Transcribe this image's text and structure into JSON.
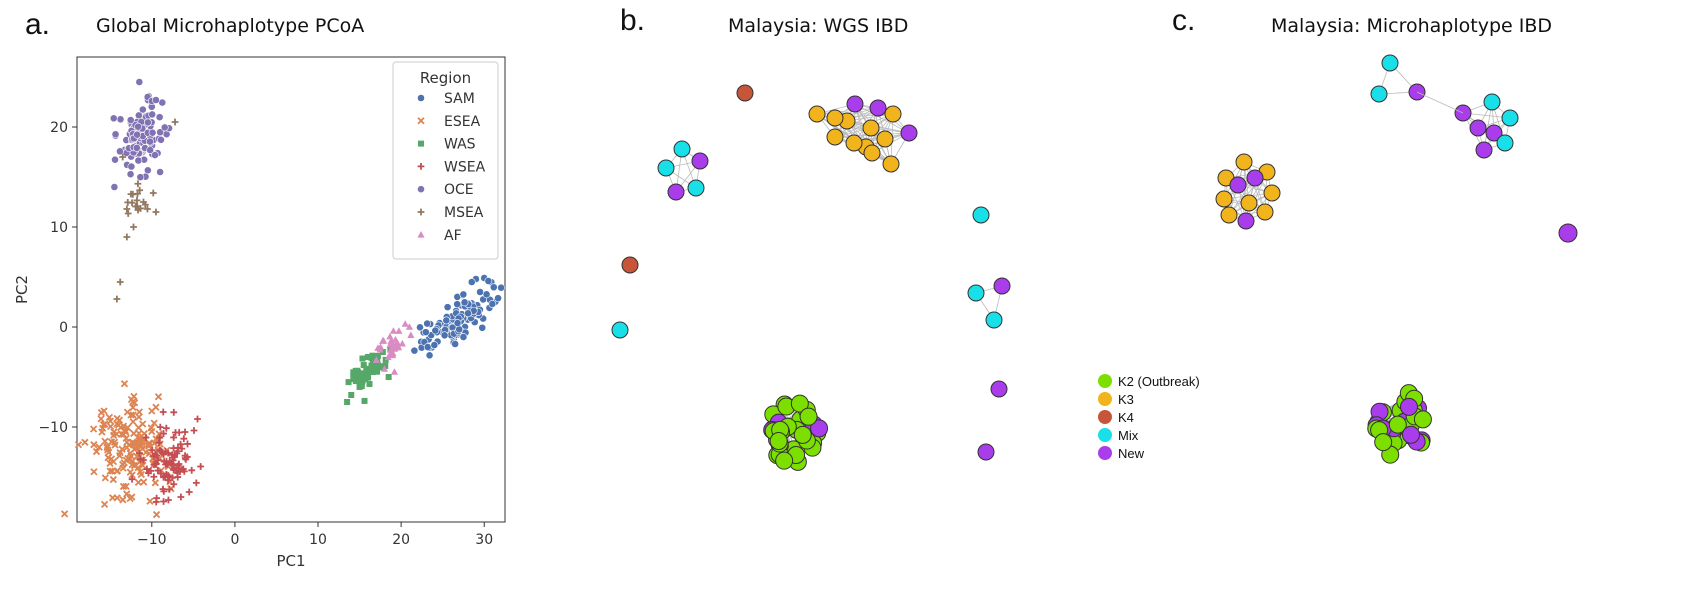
{
  "panels": {
    "a": {
      "label": "a.",
      "title": "Global Microhaplotype PCoA"
    },
    "b": {
      "label": "b.",
      "title": "Malaysia: WGS IBD"
    },
    "c": {
      "label": "c.",
      "title": "Malaysia: Microhaplotype IBD"
    }
  },
  "network_legend": [
    {
      "label": "K2 (Outbreak)",
      "color": "#7CDF00"
    },
    {
      "label": "K3",
      "color": "#F2B41C"
    },
    {
      "label": "K4",
      "color": "#C7553A"
    },
    {
      "label": "Mix",
      "color": "#19E0E8"
    },
    {
      "label": "New",
      "color": "#A93DEB"
    }
  ],
  "chart_data": [
    {
      "type": "scatter",
      "title": "Global Microhaplotype PCoA",
      "xlabel": "PC1",
      "ylabel": "PC2",
      "xlim": [
        -19,
        32.5
      ],
      "ylim": [
        -19.5,
        27
      ],
      "xticks": [
        -10,
        0,
        10,
        20,
        30
      ],
      "yticks": [
        -10,
        0,
        10,
        20
      ],
      "tick_labels": {
        "x": [
          "−10",
          "0",
          "10",
          "20",
          "30"
        ],
        "y": [
          "−10",
          "0",
          "10",
          "20"
        ]
      },
      "grid": false,
      "legend": {
        "title": "Region",
        "position": "top-right"
      },
      "series": [
        {
          "name": "SAM",
          "color": "#4C72B0",
          "marker": "circle",
          "cluster": {
            "center": [
              26.5,
              0.5
            ],
            "spread": [
              2.5,
              1.6
            ],
            "count": 110,
            "rotate": 0.55
          },
          "points": [
            [
              29.0,
              4.8
            ],
            [
              30.0,
              4.9
            ],
            [
              30.5,
              4.6
            ],
            [
              28.5,
              4.5
            ],
            [
              29.5,
              3.5
            ],
            [
              22.8,
              -1.5
            ],
            [
              23.2,
              -2.0
            ],
            [
              24.0,
              -1.8
            ],
            [
              26.5,
              -1.7
            ],
            [
              27.5,
              -1.0
            ]
          ]
        },
        {
          "name": "ESEA",
          "color": "#DD8452",
          "marker": "x",
          "cluster": {
            "center": [
              -13.0,
              -12.5
            ],
            "spread": [
              2.3,
              2.3
            ],
            "count": 150,
            "rotate": 0
          },
          "points": [
            [
              -17.0,
              -10.2
            ],
            [
              -16.0,
              -10.5
            ],
            [
              -11.5,
              -8.5
            ],
            [
              -10.0,
              -8.4
            ],
            [
              -12.5,
              -8.8
            ],
            [
              -14.0,
              -9.8
            ]
          ]
        },
        {
          "name": "WAS",
          "color": "#55A868",
          "marker": "square",
          "cluster": {
            "center": [
              16.0,
              -4.2
            ],
            "spread": [
              1.5,
              1.2
            ],
            "count": 50,
            "rotate": 0.65
          },
          "points": [
            [
              13.5,
              -7.5
            ],
            [
              14.0,
              -6.8
            ],
            [
              16.0,
              -3.0
            ],
            [
              17.8,
              -2.5
            ],
            [
              18.5,
              -5.0
            ],
            [
              15.0,
              -6.0
            ]
          ]
        },
        {
          "name": "WSEA",
          "color": "#C44E52",
          "marker": "plus",
          "cluster": {
            "center": [
              -8.0,
              -13.5
            ],
            "spread": [
              1.6,
              1.7
            ],
            "count": 90,
            "rotate": 0
          },
          "points": [
            [
              -4.5,
              -9.2
            ],
            [
              -6.0,
              -10.5
            ],
            [
              -5.5,
              -16.5
            ],
            [
              -6.5,
              -17.0
            ],
            [
              -8.0,
              -17.3
            ]
          ]
        },
        {
          "name": "OCE",
          "color": "#8172B3",
          "marker": "circle",
          "cluster": {
            "center": [
              -11.5,
              18.8
            ],
            "spread": [
              1.3,
              1.7
            ],
            "count": 105,
            "rotate": 0
          },
          "points": [
            [
              -11.5,
              24.5
            ],
            [
              -10.5,
              23.0
            ],
            [
              -10.0,
              22.6
            ],
            [
              -9.5,
              22.7
            ],
            [
              -14.5,
              14.0
            ],
            [
              -9.0,
              15.5
            ]
          ]
        },
        {
          "name": "MSEA",
          "color": "#937860",
          "marker": "plus",
          "cluster": {
            "center": [
              -12.0,
              12.5
            ],
            "spread": [
              1.0,
              1.0
            ],
            "count": 16,
            "rotate": 0
          },
          "points": [
            [
              -13.8,
              4.5
            ],
            [
              -14.2,
              2.8
            ],
            [
              -13.0,
              9.0
            ],
            [
              -12.2,
              10.0
            ],
            [
              -13.5,
              17.0
            ],
            [
              -7.2,
              20.5
            ],
            [
              -13.0,
              11.8
            ],
            [
              -11.0,
              12.5
            ],
            [
              -9.5,
              11.5
            ]
          ]
        },
        {
          "name": "AF",
          "color": "#DA8BC3",
          "marker": "triangle",
          "cluster": {
            "center": [
              19.0,
              -1.8
            ],
            "spread": [
              1.0,
              1.1
            ],
            "count": 32,
            "rotate": 0.6
          },
          "points": [
            [
              20.5,
              0.3
            ],
            [
              21.0,
              0.0
            ],
            [
              18.0,
              -4.2
            ],
            [
              19.2,
              -4.5
            ]
          ]
        }
      ]
    },
    {
      "type": "network",
      "title": "Malaysia: WGS IBD",
      "groups": [
        {
          "node_color": "New",
          "count": 1
        }
      ]
    },
    {
      "type": "network",
      "title": "Malaysia: Microhaplotype IBD",
      "groups": [
        {
          "node_color": "New",
          "count": 1
        }
      ]
    }
  ]
}
